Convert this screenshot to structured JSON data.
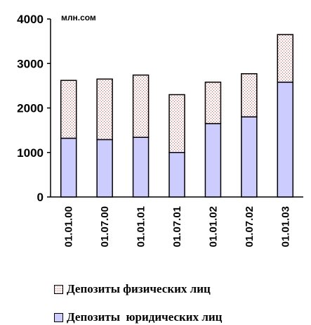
{
  "chart_data": {
    "type": "bar",
    "stacked": true,
    "unit_label": "млн.сом",
    "categories": [
      "01.01.00",
      "01.07.00",
      "01.01.01",
      "01.07.01",
      "01.01.02",
      "01.07.02",
      "01.01.03"
    ],
    "series": [
      {
        "name": "Депозиты юридических лиц",
        "values": [
          1320,
          1290,
          1340,
          1000,
          1650,
          1800,
          2580
        ],
        "color": "#ccccff"
      },
      {
        "name": "Депозиты физических лиц",
        "values": [
          1300,
          1360,
          1400,
          1300,
          930,
          970,
          1070
        ],
        "color": "#ffe8e8"
      }
    ],
    "ylim": [
      0,
      4000
    ],
    "yticks": [
      0,
      1000,
      2000,
      3000,
      4000
    ],
    "grid": false,
    "legend_position": "bottom"
  },
  "legend": [
    {
      "label": "Депозиты физических лиц"
    },
    {
      "label": "Депозиты  юридических лиц"
    }
  ]
}
